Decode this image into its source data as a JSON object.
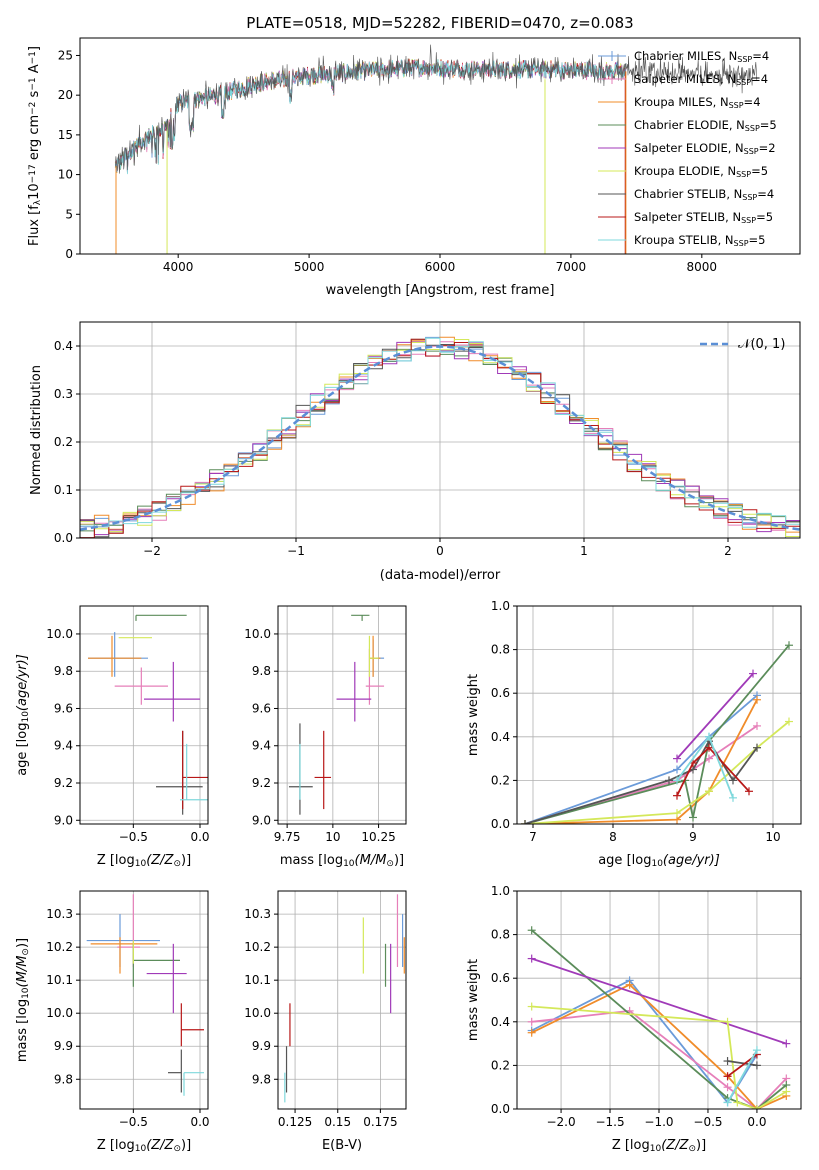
{
  "colors": {
    "Chabrier MILES": "#6b9bd9",
    "Salpeter MILES": "#e67fb9",
    "Kroupa MILES": "#f08c2a",
    "Chabrier ELODIE": "#5b8c5a",
    "Salpeter ELODIE": "#a03ab8",
    "Kroupa ELODIE": "#d4e85a",
    "Chabrier STELIB": "#555555",
    "Salpeter STELIB": "#b81818",
    "Kroupa STELIB": "#7fd8dc"
  },
  "chart_data": [
    {
      "id": "spectrum",
      "type": "line",
      "title": "PLATE=0518, MJD=52282, FIBERID=0470, z=0.083",
      "xlabel": "wavelength [Angstrom, rest frame]",
      "ylabel_parts": [
        "Flux [f",
        "λ",
        "10",
        "−17",
        " erg cm",
        "−2",
        " s",
        "−1",
        " A",
        "−1",
        "]"
      ],
      "xlim": [
        3250,
        8750
      ],
      "ylim": [
        0,
        27.2
      ],
      "xticks": [
        4000,
        5000,
        6000,
        7000,
        8000
      ],
      "yticks": [
        0,
        5,
        10,
        15,
        20,
        25
      ],
      "grid": false,
      "legend": "upper-right",
      "legend_entries": [
        {
          "name": "Chabrier MILES",
          "nssp": "4",
          "marker": "+"
        },
        {
          "name": "Salpeter MILES",
          "nssp": "4",
          "marker": "+"
        },
        {
          "name": "Kroupa MILES",
          "nssp": "4"
        },
        {
          "name": "Chabrier ELODIE",
          "nssp": "5"
        },
        {
          "name": "Salpeter ELODIE",
          "nssp": "2"
        },
        {
          "name": "Kroupa ELODIE",
          "nssp": "5"
        },
        {
          "name": "Chabrier STELIB",
          "nssp": "4"
        },
        {
          "name": "Salpeter STELIB",
          "nssp": "5"
        },
        {
          "name": "Kroupa STELIB",
          "nssp": "5"
        }
      ],
      "continuum_x": [
        3520,
        3700,
        3900,
        4000,
        4300,
        4600,
        5000,
        5400,
        5800,
        6200,
        6600,
        7000,
        7400
      ],
      "continuum_y": [
        11,
        14,
        16,
        19,
        20,
        21.5,
        22.5,
        23,
        23.5,
        23.3,
        23.2,
        23.2,
        23
      ],
      "data_range": [
        3520,
        8420
      ],
      "model_cutoff": 7420
    },
    {
      "id": "residuals",
      "type": "histogram",
      "xlabel": "(data-model)/error",
      "ylabel": "Normed distribution",
      "xlim": [
        -2.5,
        2.5
      ],
      "ylim": [
        0,
        0.45
      ],
      "xticks": [
        -2,
        -1,
        0,
        1,
        2
      ],
      "yticks": [
        0.0,
        0.1,
        0.2,
        0.3,
        0.4
      ],
      "grid": true,
      "legend": "upper-right",
      "legend_label": "𝒩(0, 1)",
      "bin_width": 0.1
    },
    {
      "id": "age-vs-Z",
      "type": "errorbar",
      "xlabel_parts": [
        "Z [log",
        "10",
        "(Z/Z",
        "⊙",
        ")]"
      ],
      "ylabel_parts": [
        "age  [log",
        "10",
        "(age/yr)]"
      ],
      "xlim": [
        -0.9,
        0.06
      ],
      "ylim": [
        8.98,
        10.15
      ],
      "xticks": [
        -0.5,
        0.0
      ],
      "yticks": [
        9.0,
        9.2,
        9.4,
        9.6,
        9.8,
        10.0
      ],
      "grid": true,
      "points": [
        {
          "model": "Chabrier MILES",
          "x": -0.64,
          "xerr": [
            0.2,
            0.25
          ],
          "y": 9.87,
          "yerr": [
            0.1,
            0.14
          ]
        },
        {
          "model": "Salpeter MILES",
          "x": -0.44,
          "xerr": [
            0.2,
            0.2
          ],
          "y": 9.72,
          "yerr": [
            0.1,
            0.1
          ]
        },
        {
          "model": "Kroupa MILES",
          "x": -0.66,
          "xerr": [
            0.18,
            0.22
          ],
          "y": 9.87,
          "yerr": [
            0.1,
            0.12
          ]
        },
        {
          "model": "Chabrier ELODIE",
          "x": -0.48,
          "xerr": [
            0.0,
            0.38
          ],
          "y": 10.1,
          "yerr": [
            0.03,
            0.0
          ]
        },
        {
          "model": "Salpeter ELODIE",
          "x": -0.2,
          "xerr": [
            0.22,
            0.2
          ],
          "y": 9.65,
          "yerr": [
            0.12,
            0.2
          ]
        },
        {
          "model": "Kroupa ELODIE",
          "x": -0.48,
          "xerr": [
            0.13,
            0.12
          ],
          "y": 9.98,
          "yerr": [
            0.0,
            0.0
          ]
        },
        {
          "model": "Chabrier STELIB",
          "x": -0.13,
          "xerr": [
            0.2,
            0.15
          ],
          "y": 9.18,
          "yerr": [
            0.15,
            0.3
          ]
        },
        {
          "model": "Salpeter STELIB",
          "x": -0.13,
          "xerr": [
            0.0,
            0.2
          ],
          "y": 9.23,
          "yerr": [
            0.17,
            0.25
          ]
        },
        {
          "model": "Kroupa STELIB",
          "x": -0.1,
          "xerr": [
            0.05,
            0.17
          ],
          "y": 9.11,
          "yerr": [
            0.0,
            0.3
          ]
        }
      ]
    },
    {
      "id": "age-vs-mass",
      "type": "errorbar",
      "xlabel_parts": [
        "mass [log",
        "10",
        "(M/M",
        "⊙",
        ")]"
      ],
      "xlim": [
        9.7,
        10.4
      ],
      "ylim": [
        8.98,
        10.15
      ],
      "xticks": [
        9.75,
        10.0,
        10.25
      ],
      "yticks": [
        9.0,
        9.2,
        9.4,
        9.6,
        9.8,
        10.0
      ],
      "grid": true,
      "points": [
        {
          "model": "Chabrier MILES",
          "x": 10.22,
          "xerr": [
            0.02,
            0.06
          ],
          "y": 9.87,
          "yerr": [
            0.1,
            0.1
          ]
        },
        {
          "model": "Salpeter MILES",
          "x": 10.2,
          "xerr": [
            0.02,
            0.08
          ],
          "y": 9.72,
          "yerr": [
            0.1,
            0.2
          ]
        },
        {
          "model": "Kroupa MILES",
          "x": 10.22,
          "xerr": [
            0.02,
            0.04
          ],
          "y": 9.87,
          "yerr": [
            0.1,
            0.12
          ]
        },
        {
          "model": "Chabrier ELODIE",
          "x": 10.16,
          "xerr": [
            0.06,
            0.04
          ],
          "y": 10.1,
          "yerr": [
            0.03,
            0.0
          ]
        },
        {
          "model": "Salpeter ELODIE",
          "x": 10.12,
          "xerr": [
            0.1,
            0.09
          ],
          "y": 9.65,
          "yerr": [
            0.12,
            0.2
          ]
        },
        {
          "model": "Kroupa ELODIE",
          "x": 10.2,
          "xerr": [
            0.0,
            0.05
          ],
          "y": 9.87,
          "yerr": [
            0.1,
            0.12
          ]
        },
        {
          "model": "Chabrier STELIB",
          "x": 9.82,
          "xerr": [
            0.06,
            0.07
          ],
          "y": 9.18,
          "yerr": [
            0.15,
            0.34
          ]
        },
        {
          "model": "Salpeter STELIB",
          "x": 9.95,
          "xerr": [
            0.05,
            0.04
          ],
          "y": 9.23,
          "yerr": [
            0.17,
            0.25
          ]
        },
        {
          "model": "Kroupa STELIB",
          "x": 9.82,
          "xerr": [
            0.0,
            0.0
          ],
          "y": 9.11,
          "yerr": [
            0.0,
            0.3
          ]
        }
      ]
    },
    {
      "id": "weight-vs-age",
      "type": "line",
      "xlabel_parts": [
        "age  [log",
        "10",
        "(age/yr)]"
      ],
      "ylabel": "mass weight",
      "xlim": [
        6.8,
        10.35
      ],
      "ylim": [
        0,
        1.0
      ],
      "xticks": [
        7,
        8,
        9,
        10
      ],
      "yticks": [
        0.0,
        0.2,
        0.4,
        0.6,
        0.8,
        1.0
      ],
      "grid": true,
      "series": [
        {
          "name": "Chabrier MILES",
          "x": [
            6.9,
            8.8,
            9.2,
            9.8
          ],
          "y": [
            0.0,
            0.25,
            0.4,
            0.59
          ]
        },
        {
          "name": "Salpeter MILES",
          "x": [
            6.9,
            8.8,
            9.2,
            9.8
          ],
          "y": [
            0.0,
            0.2,
            0.3,
            0.45
          ]
        },
        {
          "name": "Kroupa MILES",
          "x": [
            6.9,
            8.8,
            9.2,
            9.8
          ],
          "y": [
            0.0,
            0.02,
            0.15,
            0.57
          ]
        },
        {
          "name": "Chabrier ELODIE",
          "x": [
            6.9,
            8.9,
            9.0,
            9.2,
            10.2
          ],
          "y": [
            0.0,
            0.2,
            0.03,
            0.38,
            0.82
          ]
        },
        {
          "name": "Salpeter ELODIE",
          "x": [
            8.8,
            9.75
          ],
          "y": [
            0.3,
            0.69
          ]
        },
        {
          "name": "Kroupa ELODIE",
          "x": [
            6.9,
            8.8,
            9.2,
            9.8,
            10.2
          ],
          "y": [
            0.0,
            0.05,
            0.15,
            0.35,
            0.47
          ]
        },
        {
          "name": "Chabrier STELIB",
          "x": [
            6.9,
            8.7,
            9.0,
            9.2,
            9.5,
            9.8
          ],
          "y": [
            0.0,
            0.2,
            0.25,
            0.38,
            0.2,
            0.35
          ]
        },
        {
          "name": "Salpeter STELIB",
          "x": [
            8.8,
            9.0,
            9.2,
            9.7
          ],
          "y": [
            0.13,
            0.28,
            0.35,
            0.15
          ]
        },
        {
          "name": "Kroupa STELIB",
          "x": [
            8.8,
            9.2,
            9.5
          ],
          "y": [
            0.2,
            0.4,
            0.12
          ]
        }
      ]
    },
    {
      "id": "mass-vs-Z",
      "type": "errorbar",
      "xlabel_parts": [
        "Z [log",
        "10",
        "(Z/Z",
        "⊙",
        ")]"
      ],
      "ylabel_parts": [
        "mass [log",
        "10",
        "(M/M",
        "⊙",
        ")]"
      ],
      "xlim": [
        -0.9,
        0.06
      ],
      "ylim": [
        9.71,
        10.37
      ],
      "xticks": [
        -0.5,
        0.0
      ],
      "yticks": [
        9.8,
        9.9,
        10.0,
        10.1,
        10.2,
        10.3
      ],
      "grid": true,
      "points": [
        {
          "model": "Chabrier MILES",
          "x": -0.6,
          "xerr": [
            0.25,
            0.3
          ],
          "y": 10.22,
          "yerr": [
            0.08,
            0.08
          ]
        },
        {
          "model": "Salpeter MILES",
          "x": -0.5,
          "xerr": [
            0.12,
            0.05
          ],
          "y": 10.2,
          "yerr": [
            0.06,
            0.16
          ]
        },
        {
          "model": "Kroupa MILES",
          "x": -0.6,
          "xerr": [
            0.22,
            0.28
          ],
          "y": 10.21,
          "yerr": [
            0.09,
            0.02
          ]
        },
        {
          "model": "Chabrier ELODIE",
          "x": -0.5,
          "xerr": [
            0.0,
            0.35
          ],
          "y": 10.16,
          "yerr": [
            0.08,
            0.05
          ]
        },
        {
          "model": "Salpeter ELODIE",
          "x": -0.2,
          "xerr": [
            0.2,
            0.1
          ],
          "y": 10.12,
          "yerr": [
            0.12,
            0.09
          ]
        },
        {
          "model": "Kroupa ELODIE",
          "x": -0.5,
          "xerr": [
            0.0,
            0.0
          ],
          "y": 10.2,
          "yerr": [
            0.05,
            0.02
          ]
        },
        {
          "model": "Chabrier STELIB",
          "x": -0.14,
          "xerr": [
            0.1,
            0.0
          ],
          "y": 9.82,
          "yerr": [
            0.06,
            0.07
          ]
        },
        {
          "model": "Salpeter STELIB",
          "x": -0.14,
          "xerr": [
            0.0,
            0.17
          ],
          "y": 9.95,
          "yerr": [
            0.05,
            0.08
          ]
        },
        {
          "model": "Kroupa STELIB",
          "x": -0.12,
          "xerr": [
            0.0,
            0.15
          ],
          "y": 9.82,
          "yerr": [
            0.07,
            0.0
          ]
        }
      ]
    },
    {
      "id": "mass-vs-ebv",
      "type": "errorbar",
      "xlabel": "E(B-V)",
      "xlim": [
        0.115,
        0.19
      ],
      "ylim": [
        9.71,
        10.37
      ],
      "xticks": [
        0.125,
        0.15,
        0.175
      ],
      "yticks": [
        9.8,
        9.9,
        10.0,
        10.1,
        10.2,
        10.3
      ],
      "grid": true,
      "points": [
        {
          "model": "Chabrier MILES",
          "x": 0.188,
          "xerr": [
            0.0,
            0.0
          ],
          "y": 10.22,
          "yerr": [
            0.08,
            0.08
          ]
        },
        {
          "model": "Salpeter MILES",
          "x": 0.185,
          "xerr": [
            0.0,
            0.0
          ],
          "y": 10.2,
          "yerr": [
            0.06,
            0.16
          ]
        },
        {
          "model": "Kroupa MILES",
          "x": 0.189,
          "xerr": [
            0.0,
            0.0
          ],
          "y": 10.21,
          "yerr": [
            0.09,
            0.02
          ]
        },
        {
          "model": "Chabrier ELODIE",
          "x": 0.178,
          "xerr": [
            0.0,
            0.0
          ],
          "y": 10.16,
          "yerr": [
            0.08,
            0.05
          ]
        },
        {
          "model": "Salpeter ELODIE",
          "x": 0.181,
          "xerr": [
            0.0,
            0.0
          ],
          "y": 10.12,
          "yerr": [
            0.12,
            0.09
          ]
        },
        {
          "model": "Kroupa ELODIE",
          "x": 0.165,
          "xerr": [
            0.0,
            0.0
          ],
          "y": 10.2,
          "yerr": [
            0.08,
            0.09
          ]
        },
        {
          "model": "Chabrier STELIB",
          "x": 0.12,
          "xerr": [
            0.0,
            0.0
          ],
          "y": 9.82,
          "yerr": [
            0.06,
            0.08
          ]
        },
        {
          "model": "Salpeter STELIB",
          "x": 0.122,
          "xerr": [
            0.0,
            0.0
          ],
          "y": 9.95,
          "yerr": [
            0.05,
            0.08
          ]
        },
        {
          "model": "Kroupa STELIB",
          "x": 0.119,
          "xerr": [
            0.0,
            0.0
          ],
          "y": 9.8,
          "yerr": [
            0.07,
            0.02
          ]
        }
      ]
    },
    {
      "id": "weight-vs-Z",
      "type": "line",
      "xlabel_parts": [
        "Z [log",
        "10",
        "(Z/Z",
        "⊙",
        ")]"
      ],
      "ylabel": "mass weight",
      "xlim": [
        -2.45,
        0.45
      ],
      "ylim": [
        0,
        1.0
      ],
      "xticks": [
        -2.0,
        -1.5,
        -1.0,
        -0.5,
        0.0
      ],
      "yticks": [
        0.0,
        0.2,
        0.4,
        0.6,
        0.8,
        1.0
      ],
      "grid": true,
      "series": [
        {
          "name": "Chabrier MILES",
          "x": [
            -2.3,
            -1.3,
            -0.3,
            0.0
          ],
          "y": [
            0.36,
            0.59,
            0.03,
            0.25
          ]
        },
        {
          "name": "Salpeter MILES",
          "x": [
            -2.3,
            -1.3,
            -0.3,
            0.0,
            0.3
          ],
          "y": [
            0.4,
            0.45,
            0.1,
            0.0,
            0.14
          ]
        },
        {
          "name": "Kroupa MILES",
          "x": [
            -2.3,
            -1.3,
            -0.3,
            0.0,
            0.3
          ],
          "y": [
            0.35,
            0.57,
            0.15,
            0.0,
            0.06
          ]
        },
        {
          "name": "Chabrier ELODIE",
          "x": [
            -2.3,
            -0.3,
            0.0,
            0.3
          ],
          "y": [
            0.82,
            0.05,
            0.0,
            0.11
          ]
        },
        {
          "name": "Salpeter ELODIE",
          "x": [
            -2.3,
            0.3
          ],
          "y": [
            0.69,
            0.3
          ]
        },
        {
          "name": "Kroupa ELODIE",
          "x": [
            -2.3,
            -0.3,
            -0.2,
            0.0,
            0.3
          ],
          "y": [
            0.47,
            0.4,
            0.03,
            0.0,
            0.08
          ]
        },
        {
          "name": "Chabrier STELIB",
          "x": [
            -0.3,
            0.0
          ],
          "y": [
            0.22,
            0.2
          ]
        },
        {
          "name": "Salpeter STELIB",
          "x": [
            -0.3,
            0.0
          ],
          "y": [
            0.15,
            0.25
          ]
        },
        {
          "name": "Kroupa STELIB",
          "x": [
            -0.3,
            0.0
          ],
          "y": [
            0.03,
            0.27
          ]
        }
      ]
    }
  ]
}
